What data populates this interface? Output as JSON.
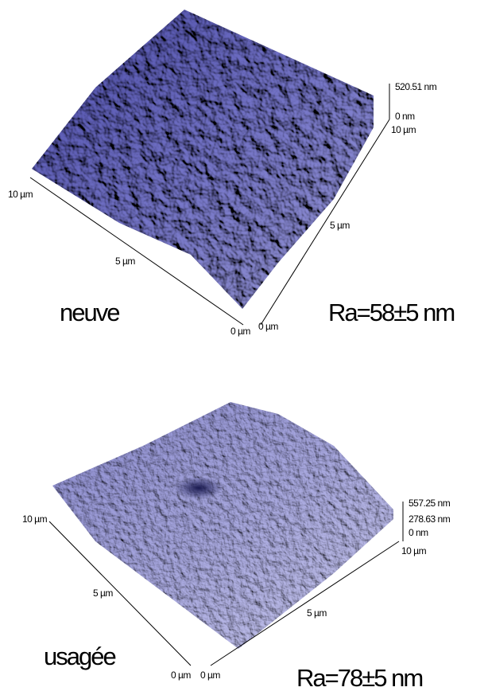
{
  "panels": [
    {
      "caption": "neuve",
      "roughness": "Ra=58±5 nm",
      "z_labels": [
        "520.51 nm",
        "0 nm"
      ],
      "x_labels": [
        "10 µm",
        "5 µm",
        "0 µm"
      ],
      "y_labels": [
        "0 µm",
        "5 µm",
        "10 µm"
      ]
    },
    {
      "caption": "usagée",
      "roughness": "Ra=78±5 nm",
      "z_labels": [
        "557.25 nm",
        "278.63 nm",
        "0 nm"
      ],
      "x_labels": [
        "10 µm",
        "5 µm",
        "0 µm"
      ],
      "y_labels": [
        "0 µm",
        "5 µm",
        "10 µm"
      ]
    }
  ]
}
